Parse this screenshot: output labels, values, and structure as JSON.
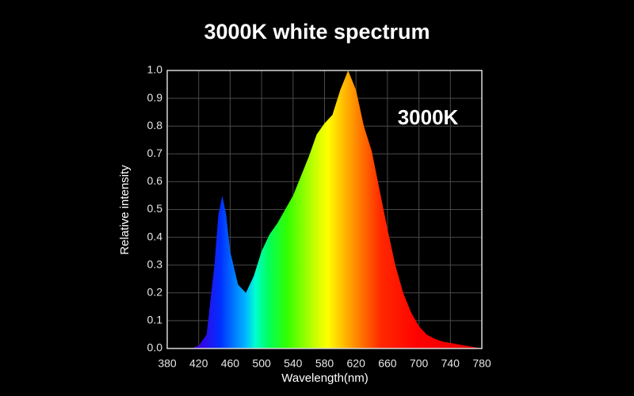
{
  "chart_data": {
    "type": "area",
    "title": "3000K white spectrum",
    "annotation": "3000K",
    "x_label": "Wavelength(nm)",
    "y_label": "Relative intensity",
    "x": [
      380,
      390,
      400,
      410,
      420,
      430,
      440,
      445,
      450,
      455,
      460,
      470,
      480,
      490,
      500,
      510,
      520,
      530,
      540,
      550,
      560,
      570,
      580,
      590,
      600,
      610,
      620,
      630,
      640,
      650,
      660,
      670,
      680,
      690,
      700,
      710,
      720,
      730,
      740,
      750,
      760,
      770,
      780
    ],
    "values": [
      0,
      0,
      0,
      0,
      0.01,
      0.05,
      0.3,
      0.48,
      0.55,
      0.48,
      0.35,
      0.23,
      0.2,
      0.26,
      0.35,
      0.41,
      0.45,
      0.5,
      0.55,
      0.62,
      0.69,
      0.77,
      0.81,
      0.84,
      0.93,
      1.0,
      0.93,
      0.8,
      0.71,
      0.57,
      0.43,
      0.3,
      0.2,
      0.13,
      0.08,
      0.05,
      0.035,
      0.025,
      0.02,
      0.015,
      0.01,
      0.005,
      0
    ],
    "xlim": [
      380,
      780
    ],
    "xticks": [
      380,
      420,
      460,
      500,
      540,
      580,
      620,
      660,
      700,
      740,
      780
    ],
    "ylim": [
      0,
      1
    ],
    "yticks": [
      {
        "value": 0,
        "label": "0.0"
      },
      0.1,
      0.2,
      0.3,
      0.4,
      0.5,
      0.6,
      0.7,
      0.8,
      0.9,
      {
        "value": 1,
        "label": "1.0"
      }
    ],
    "grid": true
  }
}
